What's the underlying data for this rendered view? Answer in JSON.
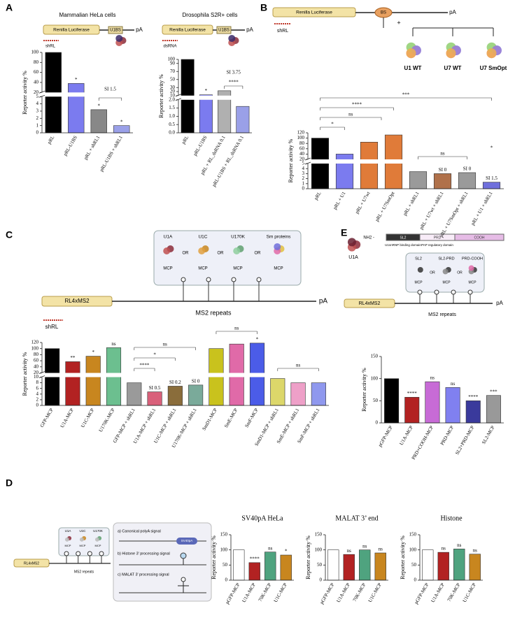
{
  "panel_labels": [
    "A",
    "B",
    "C",
    "D",
    "E"
  ],
  "diagrams": {
    "a_hela": {
      "gene": "Renilla Luciferase",
      "site": "U1BS",
      "polya": "pA",
      "sirna": "shRL"
    },
    "a_s2r": {
      "gene": "Renilla Luciferase",
      "site": "U1BS",
      "polya": "pA",
      "sirna": "dsRNA"
    },
    "b": {
      "gene": "Renilla Luciferase",
      "site": "BS",
      "polya": "pA",
      "sirna": "shRL",
      "plus": "+",
      "snrnps": [
        "U1 WT",
        "U7 WT",
        "U7 SmOpt"
      ]
    },
    "c": {
      "proteins": [
        "U1A",
        "U1C",
        "U170K",
        "Sm proteins"
      ],
      "or": "OR",
      "mcp": "MCP",
      "reporter": "RL4xMS2",
      "repeats": "MS2 repeats",
      "polya": "pA",
      "sirna": "shRL"
    },
    "e": {
      "protein": "U1A",
      "nterm": "NH2 -",
      "domains": [
        "SL2",
        "PRD",
        "COOH"
      ],
      "domain_labels": [
        "U1snRNP binding domain",
        "PAP regulatory domain"
      ],
      "constructs": [
        "SL2",
        "SL2-PRD",
        "PRD-COOH"
      ],
      "or": "OR",
      "mcp": "MCP",
      "reporter": "RL4xMS2",
      "repeats": "MS2 repeats",
      "polya": "pA"
    },
    "d": {
      "proteins": [
        "U1A",
        "U1C",
        "U170K"
      ],
      "mcp": "MCP",
      "reporter": "RL4xMS2",
      "repeats": "MS2 repeats",
      "signals": [
        "a) Canonical polyA signal",
        "b) Histone 3' processing signal",
        "c) MALAT 3' processing signal"
      ],
      "sv40": "SV40pA"
    }
  },
  "chart_data": [
    {
      "type": "bar",
      "title": "Mammalian HeLa cells",
      "ylabel": "Reporter activity %",
      "categories": [
        "pRL",
        "pRL-U1BS",
        "pRL + shRL1",
        "pRL-U1BS + shRL1"
      ],
      "values": [
        100,
        38,
        3.2,
        1.0
      ],
      "colors": [
        "#000000",
        "#7b7bef",
        "#888888",
        "#9aa0e8"
      ],
      "bar_labels": [
        null,
        "*",
        "*",
        "*"
      ],
      "annotations": [
        "SI 1.5"
      ],
      "y_segments": [
        {
          "ylim": [
            0,
            5
          ],
          "yticks": [
            0,
            1,
            2,
            3,
            4,
            5
          ]
        },
        {
          "ylim": [
            20,
            100
          ],
          "yticks": [
            20,
            40,
            60,
            80,
            100
          ]
        }
      ]
    },
    {
      "type": "bar",
      "title": "Drosophila S2R+ cells",
      "ylabel": "Reporter activity %",
      "categories": [
        "pRL",
        "pRL-U1BS",
        "pRL + RL_dsRNA  0.1",
        "pRL-U1BS + RL_dsRNA  0.1"
      ],
      "values": [
        100,
        12,
        22,
        1.6
      ],
      "colors": [
        "#000000",
        "#7b7bef",
        "#b0b0b0",
        "#9aa0e8"
      ],
      "bar_labels": [
        null,
        "*",
        null,
        null
      ],
      "annotations": [
        "SI 3.75",
        "****"
      ],
      "y_segments": [
        {
          "ylim": [
            0,
            2
          ],
          "yticks": [
            {
              "value": 0,
              "label": "0.0"
            },
            0.5,
            {
              "value": 1,
              "label": "1.0"
            },
            1.5,
            {
              "value": 2,
              "label": "2.0"
            }
          ]
        },
        {
          "ylim": [
            10,
            100
          ],
          "yticks": [
            10,
            20,
            30,
            50,
            70,
            90,
            100
          ]
        }
      ]
    },
    {
      "type": "bar",
      "ylabel": "Reporter activity %",
      "categories": [
        "pRL",
        "pRL + U1",
        "pRL + U7wt",
        "pRL + U7SmOpt",
        "pRL + shRL1",
        "pRL + U7wt + shRL1",
        "pRL + U7SmOpt + shRL1",
        "pRL + U1 + shRL1"
      ],
      "values": [
        100,
        40,
        85,
        112,
        3.4,
        3.0,
        3.2,
        1.3
      ],
      "colors": [
        "#000000",
        "#7b7bef",
        "#e07b39",
        "#e07b39",
        "#9a9a9a",
        "#b0714a",
        "#9a9a9a",
        "#6f6fdc"
      ],
      "bar_labels": [
        null,
        null,
        null,
        null,
        null,
        "SI 0",
        "SI 0",
        "SI 1.5"
      ],
      "annotations": [
        "***",
        "****",
        "ns",
        "*",
        "ns",
        "*"
      ],
      "y_segments": [
        {
          "ylim": [
            0,
            5
          ],
          "yticks": [
            0,
            1,
            2,
            3,
            4,
            5
          ]
        },
        {
          "ylim": [
            20,
            120
          ],
          "yticks": [
            20,
            40,
            60,
            80,
            100,
            120
          ]
        }
      ]
    },
    {
      "type": "bar",
      "ylabel": "Reporter activity %",
      "categories": [
        "GFP-MCP",
        "U1A-MCP",
        "U1C-MCP",
        "U170K-MCP",
        "GFP-MCP + shRL1",
        "U1A-MCP + shRL1",
        "U1C-MCP + shRL1",
        "U170K-MCP + shRL1",
        "SmD1-MCP",
        "SmE-MCP",
        "SmF-MCP",
        "SmD1-MCP + shRL1",
        "SmE-MCP + shRL1",
        "SmF-MCP + shRL1"
      ],
      "values": [
        100,
        57,
        75,
        103,
        8,
        4.8,
        6.8,
        7.2,
        100,
        115,
        118,
        9.5,
        8,
        8
      ],
      "colors": [
        "#000000",
        "#b22222",
        "#c8861f",
        "#6cbf8f",
        "#9a9a9a",
        "#d9607a",
        "#8a6d3b",
        "#7aaa9a",
        "#c9c21d",
        "#e06aa8",
        "#4b5ce8",
        "#dcd76a",
        "#eea0c8",
        "#8f98ee"
      ],
      "bar_labels": [
        null,
        "**",
        "*",
        "ns",
        null,
        "SI 0.5",
        "SI 0.2",
        "SI 0",
        null,
        null,
        "*",
        null,
        null,
        null
      ],
      "annotations": [
        "****",
        "*",
        "ns",
        "ns",
        "ns"
      ],
      "y_segments": [
        {
          "ylim": [
            0,
            10
          ],
          "yticks": [
            0,
            2,
            4,
            6,
            8,
            10
          ]
        },
        {
          "ylim": [
            20,
            120
          ],
          "yticks": [
            20,
            40,
            60,
            80,
            100,
            120
          ]
        }
      ]
    },
    {
      "type": "bar",
      "ylabel": "Reporter activity %",
      "categories": [
        "pGFP-MCP",
        "U1A-MCP",
        "PRD+COOH-MCP",
        "PRD-MCP",
        "SL2+PRD-MCP",
        "SL2-MCP"
      ],
      "values": [
        100,
        58,
        93,
        80,
        50,
        62
      ],
      "colors": [
        "#000000",
        "#b22222",
        "#c76bd6",
        "#8080f0",
        "#3a3a9c",
        "#999999"
      ],
      "bar_labels": [
        null,
        "****",
        "ns",
        "ns",
        "****",
        "***"
      ],
      "ylim": [
        0,
        150
      ],
      "yticks": [
        0,
        50,
        100,
        150
      ]
    },
    {
      "type": "bar",
      "title": "SV40pA HeLa",
      "ylabel": "Reporter activity %",
      "categories": [
        "pGFP-MCP",
        "U1A-MCP",
        "70K-MCP",
        "U1C-MCP"
      ],
      "values": [
        100,
        58,
        93,
        83
      ],
      "colors": [
        "#ffffff",
        "#b22222",
        "#4fa37f",
        "#c8861f"
      ],
      "bar_labels": [
        null,
        "****",
        "ns",
        "*"
      ],
      "ylim": [
        0,
        150
      ],
      "yticks": [
        0,
        50,
        100,
        150
      ]
    },
    {
      "type": "bar",
      "title": "MALAT 3’ end",
      "ylabel": "Reporter activity %",
      "categories": [
        "pGFP-MCP",
        "U1A-MCP",
        "70K-MCP",
        "U1C-MCP"
      ],
      "values": [
        100,
        85,
        100,
        90
      ],
      "colors": [
        "#ffffff",
        "#b22222",
        "#4fa37f",
        "#c8861f"
      ],
      "bar_labels": [
        null,
        "ns",
        "ns",
        "ns"
      ],
      "ylim": [
        0,
        150
      ],
      "yticks": [
        0,
        50,
        100,
        150
      ]
    },
    {
      "type": "bar",
      "title": "Histone",
      "ylabel": "Reporter activity %",
      "categories": [
        "pGFP-MCP",
        "U1A-MCP",
        "70K-MCP",
        "U1C-MCP"
      ],
      "values": [
        100,
        92,
        103,
        86
      ],
      "colors": [
        "#ffffff",
        "#b22222",
        "#4fa37f",
        "#c8861f"
      ],
      "bar_labels": [
        null,
        "ns",
        "ns",
        "ns"
      ],
      "ylim": [
        0,
        150
      ],
      "yticks": [
        0,
        50,
        100,
        150
      ]
    }
  ]
}
